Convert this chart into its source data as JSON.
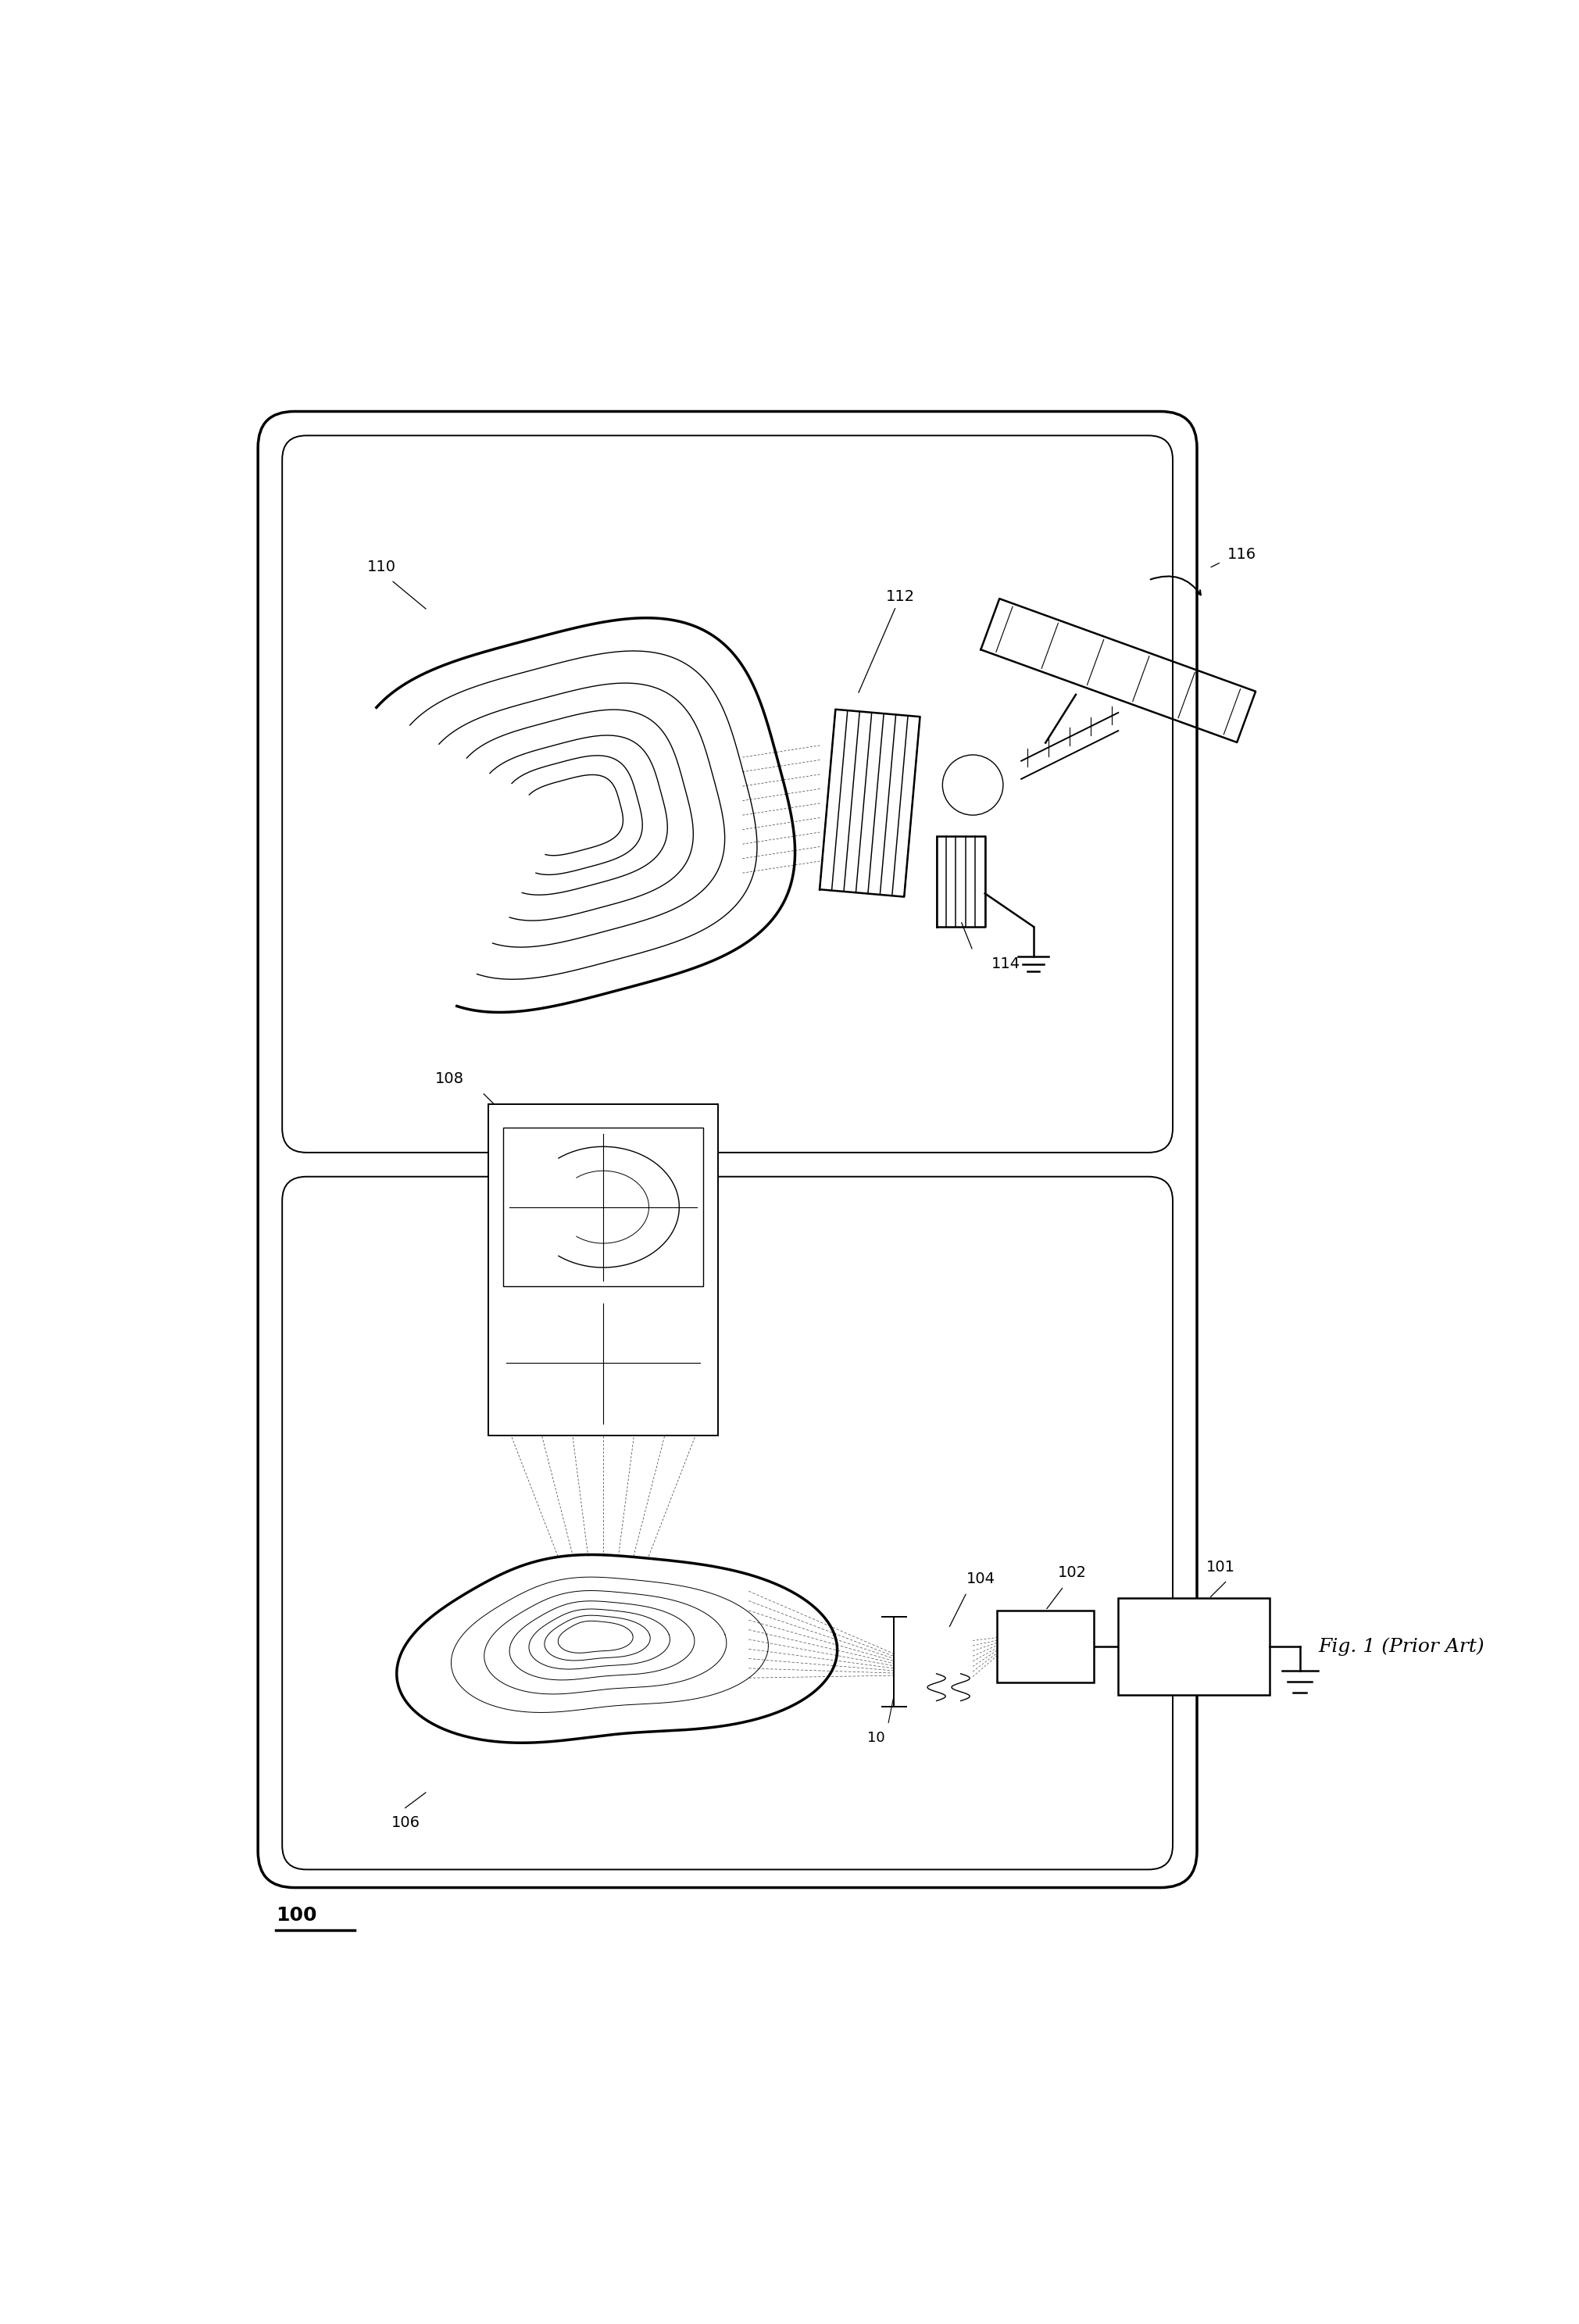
{
  "title": "Fig. 1 (Prior Art)",
  "label_100": "100",
  "label_101": "101",
  "label_102": "102",
  "label_104": "104",
  "label_106": "106",
  "label_108": "108",
  "label_10": "10",
  "label_110": "110",
  "label_112": "112",
  "label_114": "114",
  "label_116": "116",
  "bg_color": "#ffffff",
  "line_color": "#000000",
  "fig_width": 20.21,
  "fig_height": 29.74
}
